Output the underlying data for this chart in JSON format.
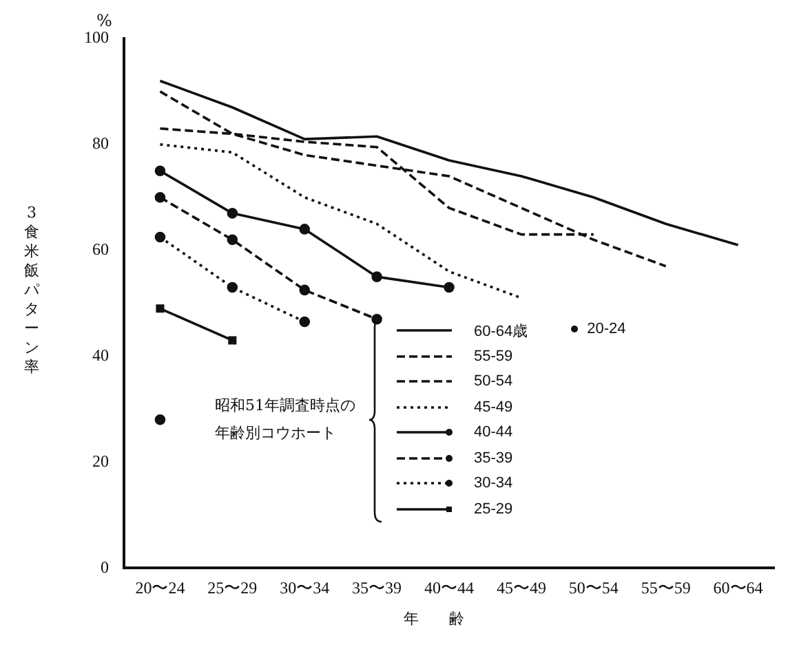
{
  "chart_data": {
    "type": "line",
    "ylabel": "3食米飯パターン率",
    "xlabel": "年　　齢",
    "legend_title": "昭和51年調査時点の年齢別コウホート",
    "annotations": [
      "%"
    ],
    "categories": [
      "20〜24",
      "25〜29",
      "30〜34",
      "35〜39",
      "40〜44",
      "45〜49",
      "50〜54",
      "55〜59",
      "60〜64"
    ],
    "ylim": [
      0,
      100
    ],
    "yticks": [
      0,
      20,
      40,
      60,
      80,
      100
    ],
    "grid": false,
    "legend": "bottom right",
    "series": [
      {
        "name": "60-64歳",
        "color": "#111111",
        "line_style": "solid",
        "marker": "none",
        "values": [
          92,
          87,
          81,
          81.5,
          77,
          74,
          70,
          65,
          61
        ]
      },
      {
        "name": "55-59",
        "color": "#111111",
        "line_style": "dashed",
        "marker": "none",
        "values": [
          90,
          82,
          78,
          76,
          74,
          68,
          62,
          57,
          null
        ]
      },
      {
        "name": "50-54",
        "color": "#111111",
        "line_style": "dashed",
        "marker": "none",
        "values": [
          83,
          82,
          80.5,
          79.5,
          68,
          63,
          63,
          null,
          null
        ]
      },
      {
        "name": "45-49",
        "color": "#111111",
        "line_style": "dotted",
        "marker": "none",
        "values": [
          80,
          78.5,
          70,
          65,
          56,
          51,
          null,
          null,
          null
        ]
      },
      {
        "name": "40-44",
        "color": "#111111",
        "line_style": "solid",
        "marker": "circle",
        "values": [
          75,
          67,
          64,
          55,
          53,
          null,
          null,
          null,
          null
        ]
      },
      {
        "name": "35-39",
        "color": "#111111",
        "line_style": "dashed",
        "marker": "circle",
        "values": [
          70,
          62,
          52.5,
          47,
          null,
          null,
          null,
          null,
          null
        ]
      },
      {
        "name": "30-34",
        "color": "#111111",
        "line_style": "dotted",
        "marker": "circle",
        "values": [
          62.5,
          53,
          46.5,
          null,
          null,
          null,
          null,
          null,
          null
        ]
      },
      {
        "name": "25-29",
        "color": "#111111",
        "line_style": "solid",
        "marker": "square",
        "values": [
          49,
          43,
          null,
          null,
          null,
          null,
          null,
          null,
          null
        ]
      },
      {
        "name": "20-24",
        "color": "#111111",
        "line_style": "none",
        "marker": "circle",
        "values": [
          28,
          null,
          null,
          null,
          null,
          null,
          null,
          null,
          null
        ]
      }
    ]
  }
}
